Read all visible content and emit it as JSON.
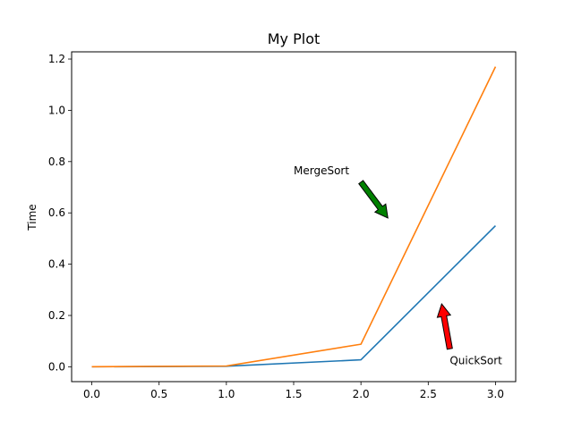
{
  "chart_data": {
    "type": "line",
    "title": "My Plot",
    "xlabel": "",
    "ylabel": "Time",
    "xlim": [
      -0.15,
      3.15
    ],
    "ylim": [
      -0.058,
      1.228
    ],
    "xticks": [
      0.0,
      0.5,
      1.0,
      1.5,
      2.0,
      2.5,
      3.0
    ],
    "xtick_labels": [
      "0.0",
      "0.5",
      "1.0",
      "1.5",
      "2.0",
      "2.5",
      "3.0"
    ],
    "yticks": [
      0.0,
      0.2,
      0.4,
      0.6,
      0.8,
      1.0,
      1.2
    ],
    "ytick_labels": [
      "0.0",
      "0.2",
      "0.4",
      "0.6",
      "0.8",
      "1.0",
      "1.2"
    ],
    "grid": false,
    "x": [
      0,
      1,
      2,
      3
    ],
    "series": [
      {
        "values": [
          0.0,
          0.002,
          0.027,
          0.55
        ],
        "color": "#1f77b4"
      },
      {
        "values": [
          0.0,
          0.003,
          0.088,
          1.17
        ],
        "color": "#ff7f0e"
      }
    ],
    "annotations": [
      {
        "text": "MergeSort",
        "text_pos": [
          1.5,
          0.75
        ],
        "arrow_from": [
          2.0,
          0.72
        ],
        "arrow_to": [
          2.2,
          0.58
        ],
        "arrow_color": "#008000"
      },
      {
        "text": "QuickSort",
        "text_pos": [
          2.66,
          0.01
        ],
        "arrow_from": [
          2.66,
          0.07
        ],
        "arrow_to": [
          2.6,
          0.245
        ],
        "arrow_color": "#ff0000"
      }
    ]
  }
}
